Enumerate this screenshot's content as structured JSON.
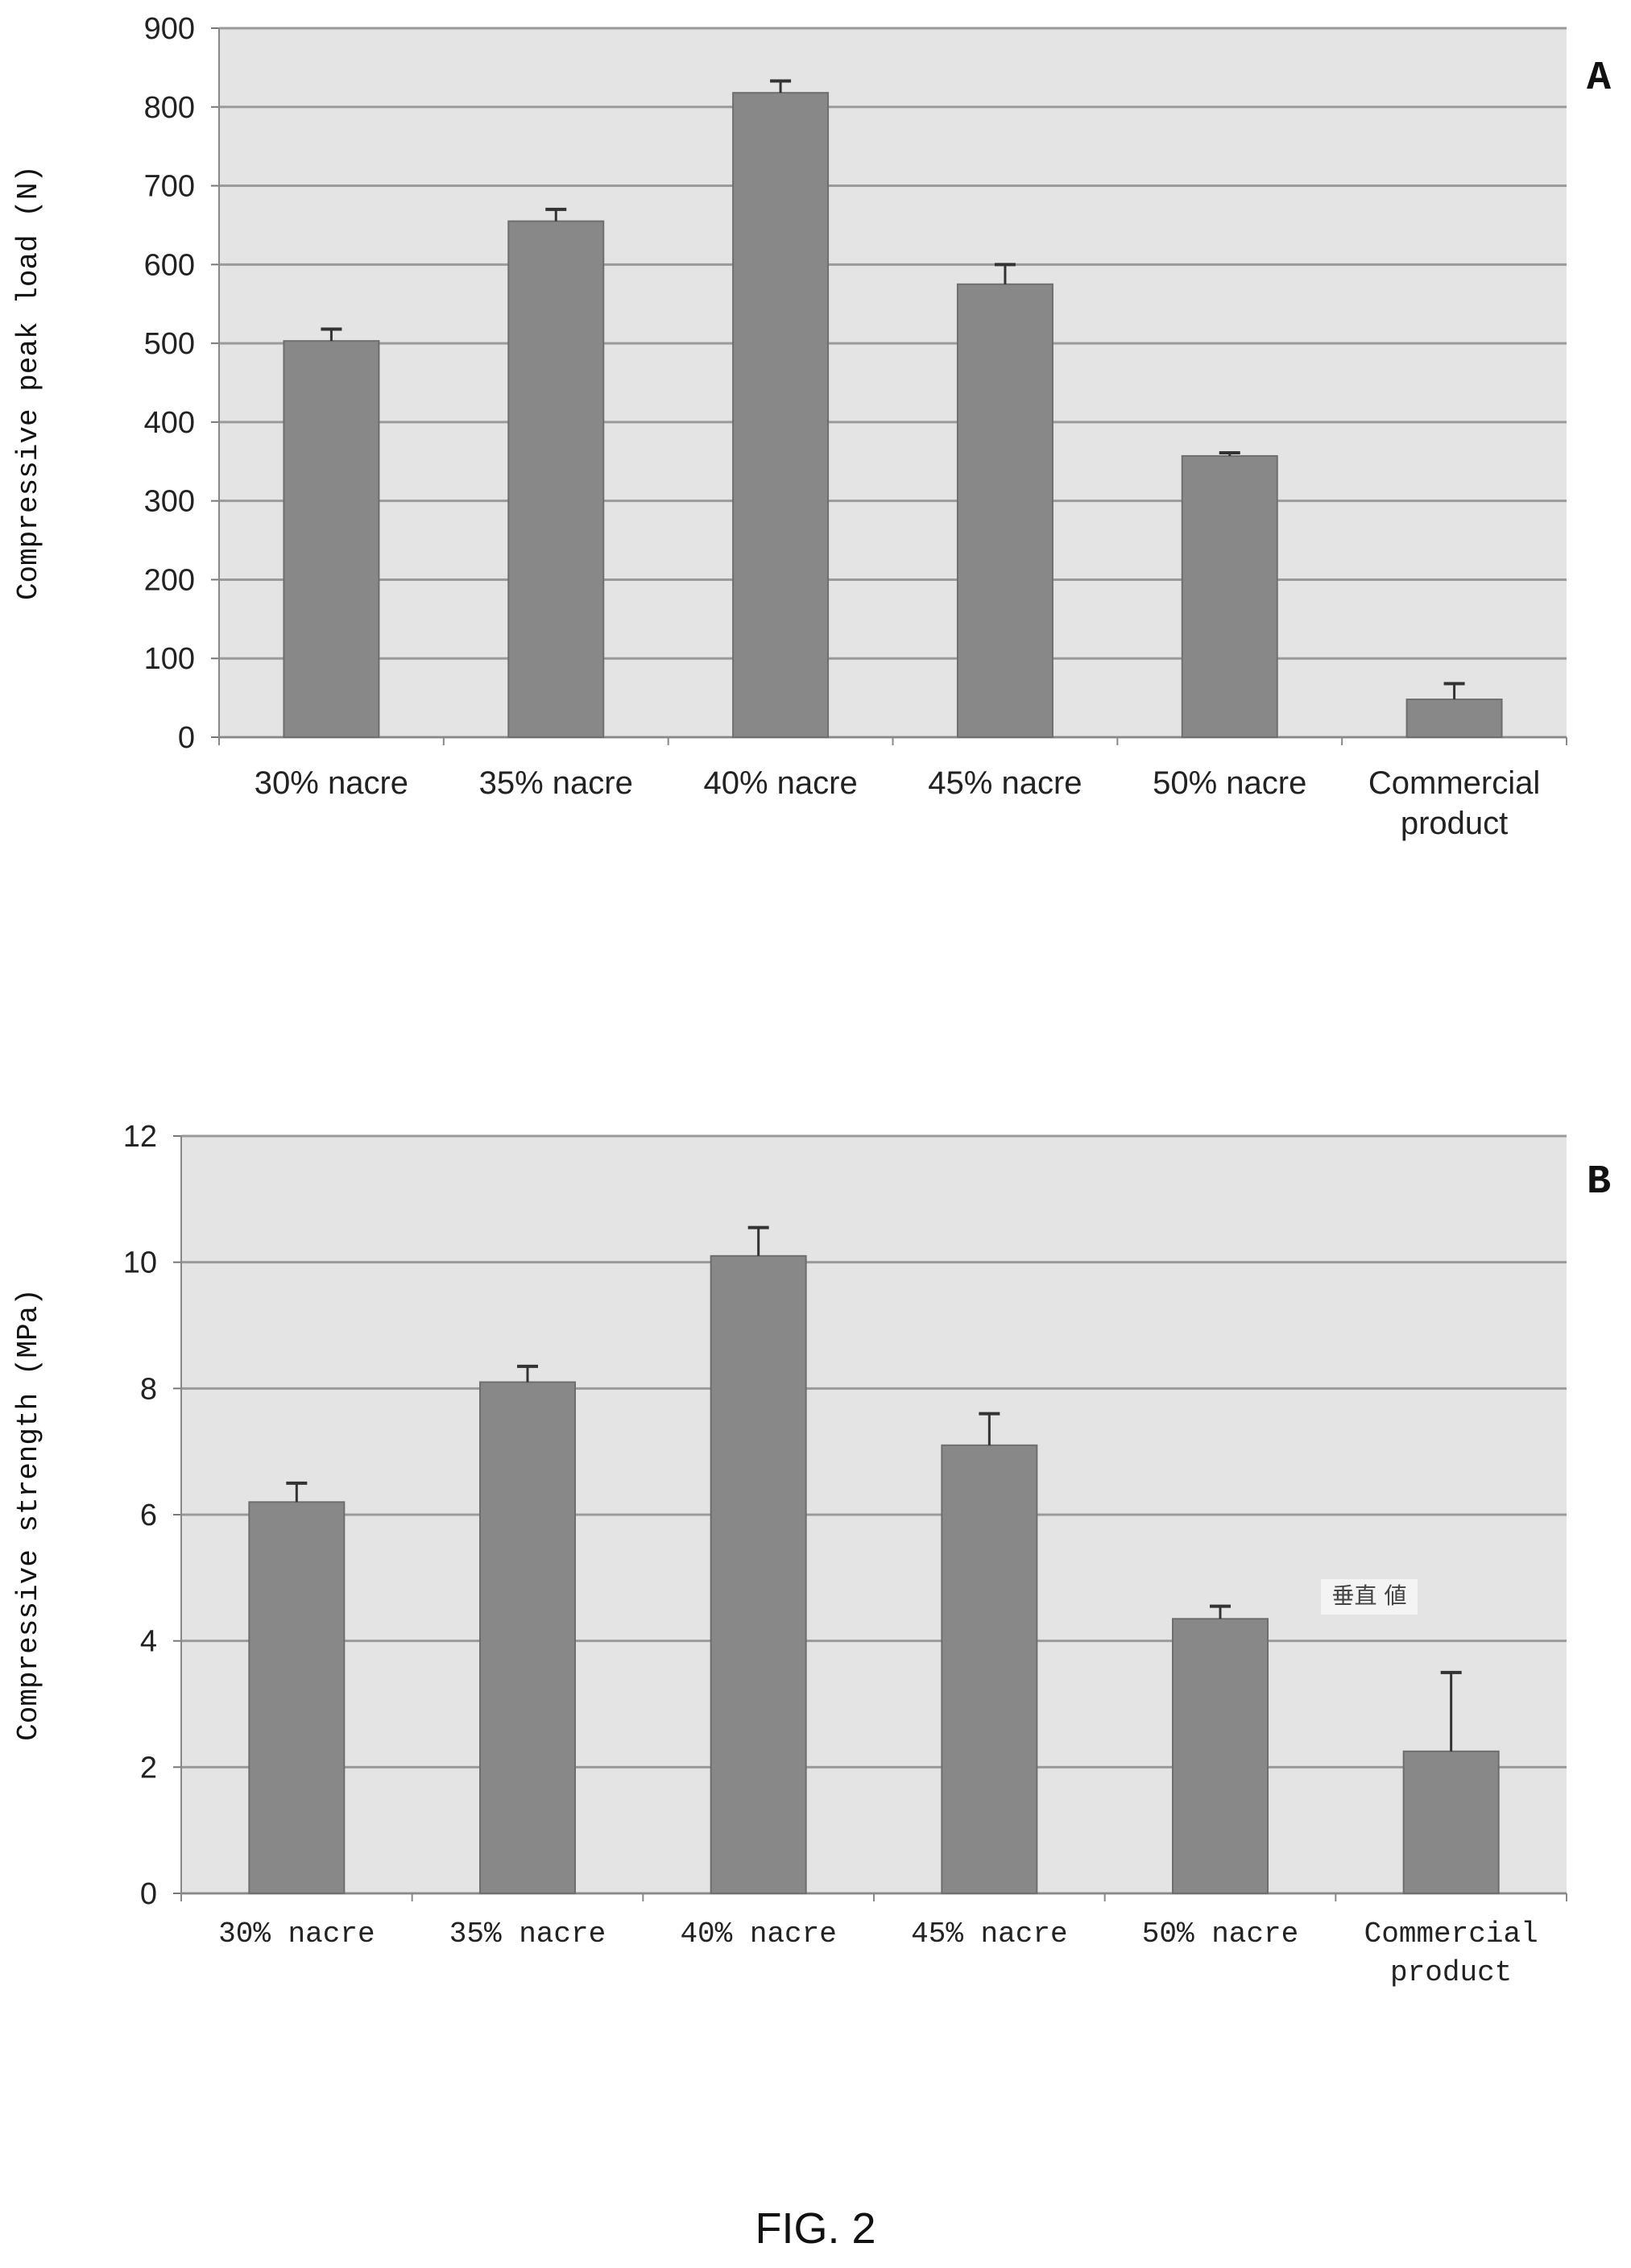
{
  "figure_caption": "FIG. 2",
  "chart_data": [
    {
      "type": "bar",
      "panel": "A",
      "ylabel": "Compressive peak load (N)",
      "xlabel": "",
      "ylim": [
        0,
        900
      ],
      "yticks": [
        0,
        100,
        200,
        300,
        400,
        500,
        600,
        700,
        800,
        900
      ],
      "grid": true,
      "categories": [
        [
          "30% nacre"
        ],
        [
          "35% nacre"
        ],
        [
          "40% nacre"
        ],
        [
          "45% nacre"
        ],
        [
          "50% nacre"
        ],
        [
          "Commercial",
          "product"
        ]
      ],
      "values": [
        503,
        655,
        818,
        575,
        357,
        48
      ],
      "errors": [
        15,
        15,
        15,
        25,
        4,
        20
      ],
      "bar_color": "#888888",
      "plot_background": "#e4e4e4"
    },
    {
      "type": "bar",
      "panel": "B",
      "ylabel": "Compressive strength (MPa)",
      "xlabel": "",
      "ylim": [
        0,
        12
      ],
      "yticks": [
        0,
        2,
        4,
        6,
        8,
        10,
        12
      ],
      "grid": true,
      "categories": [
        [
          "30% nacre"
        ],
        [
          "35% nacre"
        ],
        [
          "40% nacre"
        ],
        [
          "45% nacre"
        ],
        [
          "50% nacre"
        ],
        [
          "Commercial",
          "product"
        ]
      ],
      "values": [
        6.2,
        8.1,
        10.1,
        7.1,
        4.35,
        2.25
      ],
      "errors": [
        0.3,
        0.25,
        0.45,
        0.5,
        0.2,
        1.25
      ],
      "annotation": "垂直 値",
      "bar_color": "#888888",
      "plot_background": "#e4e4e4"
    }
  ]
}
